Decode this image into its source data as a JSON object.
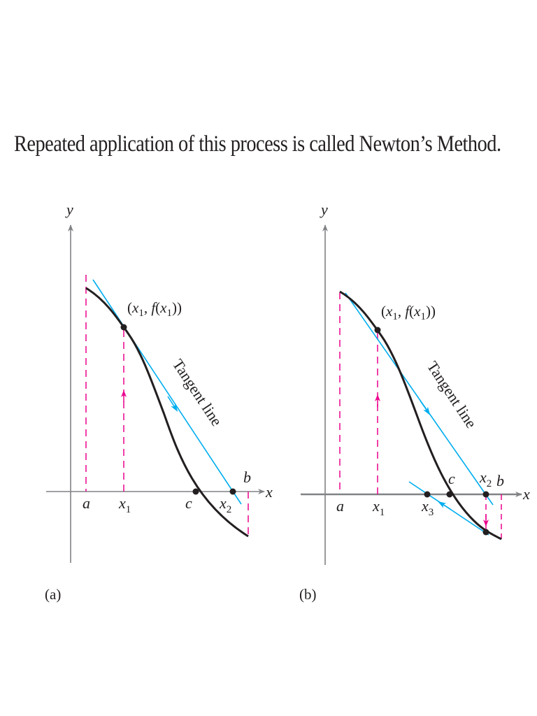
{
  "heading": "Repeated application of this process is called Newton’s Method.",
  "colors": {
    "curve": "#231f20",
    "tangent": "#00aeef",
    "guide": "#ec008c",
    "axis": "#808285"
  },
  "panel_a": {
    "caption": "(a)",
    "y_label": "y",
    "x_label": "x",
    "a_label": "a",
    "b_label": "b",
    "c_label": "c",
    "x1_label": "x",
    "x1_sub": "1",
    "x2_label": "x",
    "x2_sub": "2",
    "point_label_open": "(",
    "point_x": "x",
    "point_x_sub": "1",
    "point_mid": ", ",
    "point_f": "f",
    "point_paren": "(",
    "point_x_inner": "x",
    "point_x_inner_sub": "1",
    "point_close": "))",
    "tangent_label": "Tangent line"
  },
  "panel_b": {
    "caption": "(b)",
    "y_label": "y",
    "x_label": "x",
    "a_label": "a",
    "b_label": "b",
    "c_label": "c",
    "x1_label": "x",
    "x1_sub": "1",
    "x2_label": "x",
    "x2_sub": "2",
    "x3_label": "x",
    "x3_sub": "3",
    "point_label_open": "(",
    "point_x": "x",
    "point_x_sub": "1",
    "point_mid": ", ",
    "point_f": "f",
    "point_paren": "(",
    "point_x_inner": "x",
    "point_x_inner_sub": "1",
    "point_close": "))",
    "tangent_label": "Tangent line"
  }
}
